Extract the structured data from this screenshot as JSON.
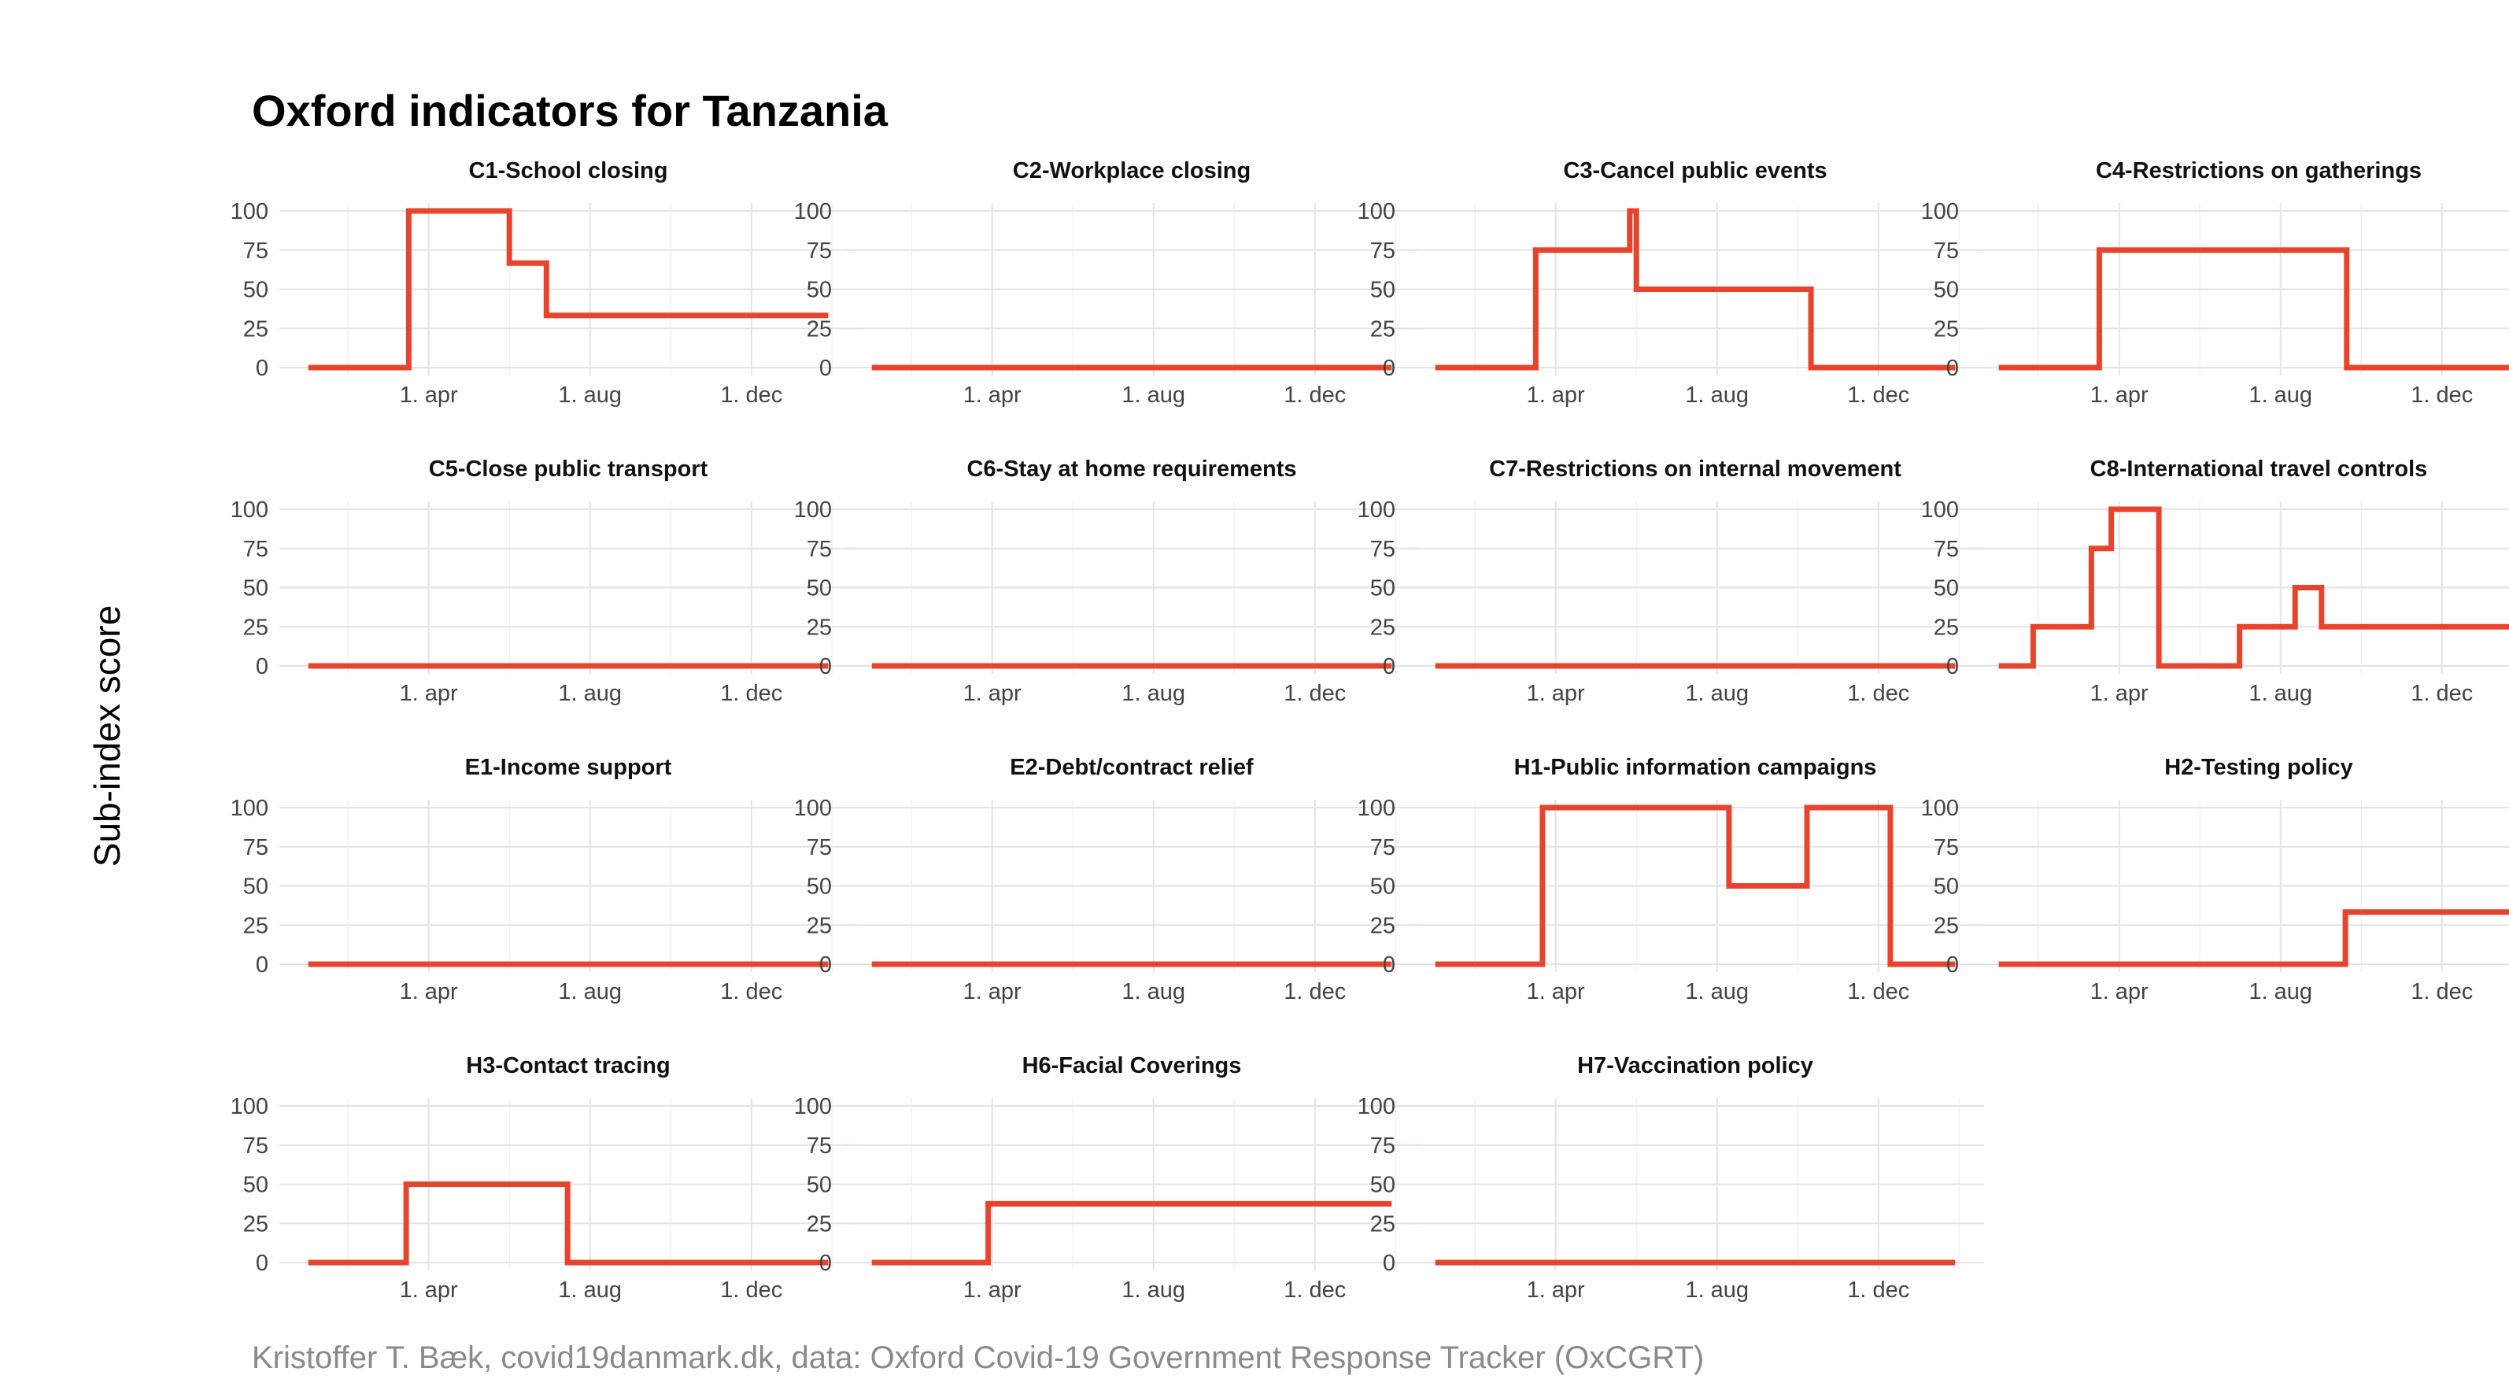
{
  "title": "Oxford indicators for Tanzania",
  "ylabel": "Sub-index score",
  "caption": "Kristoffer T. Bæk, covid19danmark.dk, data: Oxford Covid-19 Government Response Tracker (OxCGRT)",
  "colors": {
    "series": "#e8432c"
  },
  "chart_data": {
    "type": "line",
    "layout": "facet-grid-4-columns",
    "ylim": [
      0,
      100
    ],
    "yticks": [
      0,
      25,
      50,
      75,
      100
    ],
    "xlim": [
      "2020-01-01",
      "2021-01-28"
    ],
    "xticks": [
      {
        "date": "2020-04-01",
        "label": "1. apr"
      },
      {
        "date": "2020-08-01",
        "label": "1. aug"
      },
      {
        "date": "2020-12-01",
        "label": "1. dec"
      }
    ],
    "grid": true,
    "panels": [
      {
        "title": "C1-School closing",
        "steps": [
          [
            "2020-01-01",
            0
          ],
          [
            "2020-03-17",
            100
          ],
          [
            "2020-06-01",
            66.7
          ],
          [
            "2020-06-29",
            33.3
          ],
          [
            "2021-01-28",
            33.3
          ]
        ]
      },
      {
        "title": "C2-Workplace closing",
        "steps": [
          [
            "2020-01-01",
            0
          ],
          [
            "2021-01-28",
            0
          ]
        ]
      },
      {
        "title": "C3-Cancel public events",
        "steps": [
          [
            "2020-01-01",
            0
          ],
          [
            "2020-03-17",
            75
          ],
          [
            "2020-05-27",
            100
          ],
          [
            "2020-06-01",
            50
          ],
          [
            "2020-10-11",
            0
          ],
          [
            "2021-01-28",
            0
          ]
        ]
      },
      {
        "title": "C4-Restrictions on gatherings",
        "steps": [
          [
            "2020-01-01",
            0
          ],
          [
            "2020-03-17",
            75
          ],
          [
            "2020-09-20",
            0
          ],
          [
            "2021-01-28",
            0
          ]
        ]
      },
      {
        "title": "C5-Close public transport",
        "steps": [
          [
            "2020-01-01",
            0
          ],
          [
            "2021-01-28",
            0
          ]
        ]
      },
      {
        "title": "C6-Stay at home requirements",
        "steps": [
          [
            "2020-01-01",
            0
          ],
          [
            "2021-01-28",
            0
          ]
        ]
      },
      {
        "title": "C7-Restrictions on internal movement",
        "steps": [
          [
            "2020-01-01",
            0
          ],
          [
            "2021-01-28",
            0
          ]
        ]
      },
      {
        "title": "C8-International travel controls",
        "steps": [
          [
            "2020-01-01",
            0
          ],
          [
            "2020-01-27",
            25
          ],
          [
            "2020-03-11",
            75
          ],
          [
            "2020-03-26",
            100
          ],
          [
            "2020-05-01",
            0
          ],
          [
            "2020-07-01",
            25
          ],
          [
            "2020-08-12",
            50
          ],
          [
            "2020-09-01",
            25
          ],
          [
            "2021-01-28",
            25
          ]
        ]
      },
      {
        "title": "E1-Income support",
        "steps": [
          [
            "2020-01-01",
            0
          ],
          [
            "2021-01-28",
            0
          ]
        ]
      },
      {
        "title": "E2-Debt/contract relief",
        "steps": [
          [
            "2020-01-01",
            0
          ],
          [
            "2021-01-28",
            0
          ]
        ]
      },
      {
        "title": "H1-Public information campaigns",
        "steps": [
          [
            "2020-01-01",
            0
          ],
          [
            "2020-03-22",
            100
          ],
          [
            "2020-08-10",
            50
          ],
          [
            "2020-10-08",
            100
          ],
          [
            "2020-12-10",
            0
          ],
          [
            "2021-01-28",
            0
          ]
        ]
      },
      {
        "title": "H2-Testing policy",
        "steps": [
          [
            "2020-01-01",
            0
          ],
          [
            "2020-09-19",
            33.3
          ],
          [
            "2021-01-28",
            33.3
          ]
        ]
      },
      {
        "title": "H3-Contact tracing",
        "steps": [
          [
            "2020-01-01",
            0
          ],
          [
            "2020-03-15",
            50
          ],
          [
            "2020-07-15",
            0
          ],
          [
            "2021-01-28",
            0
          ]
        ]
      },
      {
        "title": "H6-Facial Coverings",
        "steps": [
          [
            "2020-01-01",
            0
          ],
          [
            "2020-03-29",
            37.5
          ],
          [
            "2021-01-28",
            37.5
          ]
        ]
      },
      {
        "title": "H7-Vaccination policy",
        "steps": [
          [
            "2020-01-01",
            0
          ],
          [
            "2021-01-28",
            0
          ]
        ]
      }
    ]
  }
}
